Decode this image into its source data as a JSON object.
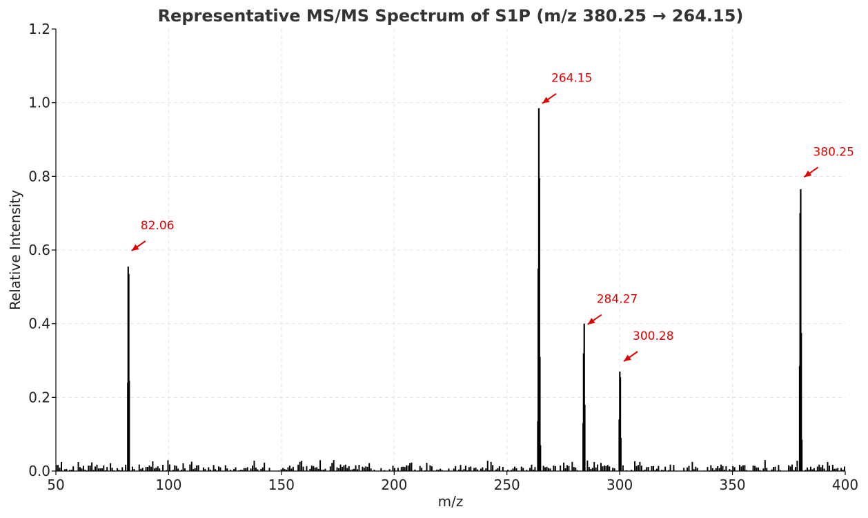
{
  "chart_data": {
    "type": "bar",
    "title": "Representative MS/MS Spectrum of S1P (m/z 380.25 → 264.15)",
    "xlabel": "m/z",
    "ylabel": "Relative Intensity",
    "xlim": [
      50,
      400
    ],
    "ylim": [
      0,
      1.2
    ],
    "xticks": [
      50,
      100,
      150,
      200,
      250,
      300,
      350,
      400
    ],
    "yticks": [
      0.0,
      0.2,
      0.4,
      0.6,
      0.8,
      1.0,
      1.2
    ],
    "xtick_labels": [
      "50",
      "100",
      "150",
      "200",
      "250",
      "300",
      "350",
      "400"
    ],
    "ytick_labels": [
      "0.0",
      "0.2",
      "0.4",
      "0.6",
      "0.8",
      "1.0",
      "1.2"
    ],
    "grid": true,
    "bar_color": "#000000",
    "annotation_color": "#e00000",
    "peaks": [
      {
        "mz": 81.9,
        "intensity": 0.24
      },
      {
        "mz": 82.06,
        "intensity": 0.555
      },
      {
        "mz": 82.3,
        "intensity": 0.535
      },
      {
        "mz": 82.5,
        "intensity": 0.245
      },
      {
        "mz": 263.7,
        "intensity": 0.135
      },
      {
        "mz": 263.9,
        "intensity": 0.55
      },
      {
        "mz": 264.15,
        "intensity": 0.985
      },
      {
        "mz": 264.4,
        "intensity": 0.795
      },
      {
        "mz": 264.6,
        "intensity": 0.31
      },
      {
        "mz": 264.85,
        "intensity": 0.07
      },
      {
        "mz": 283.8,
        "intensity": 0.13
      },
      {
        "mz": 284.0,
        "intensity": 0.32
      },
      {
        "mz": 284.27,
        "intensity": 0.4
      },
      {
        "mz": 284.5,
        "intensity": 0.18
      },
      {
        "mz": 299.8,
        "intensity": 0.14
      },
      {
        "mz": 300.05,
        "intensity": 0.27
      },
      {
        "mz": 300.28,
        "intensity": 0.255
      },
      {
        "mz": 300.5,
        "intensity": 0.09
      },
      {
        "mz": 379.8,
        "intensity": 0.285
      },
      {
        "mz": 380.0,
        "intensity": 0.7
      },
      {
        "mz": 380.25,
        "intensity": 0.765
      },
      {
        "mz": 380.5,
        "intensity": 0.375
      },
      {
        "mz": 380.75,
        "intensity": 0.085
      }
    ],
    "noise_range": [
      0.0,
      0.03
    ],
    "annotations": [
      {
        "text": "82.06",
        "mz": 82.06,
        "intensity": 0.6
      },
      {
        "text": "264.15",
        "mz": 264.15,
        "intensity": 1.0
      },
      {
        "text": "284.27",
        "mz": 284.27,
        "intensity": 0.4
      },
      {
        "text": "300.28",
        "mz": 300.28,
        "intensity": 0.3
      },
      {
        "text": "380.25",
        "mz": 380.25,
        "intensity": 0.8
      }
    ]
  }
}
